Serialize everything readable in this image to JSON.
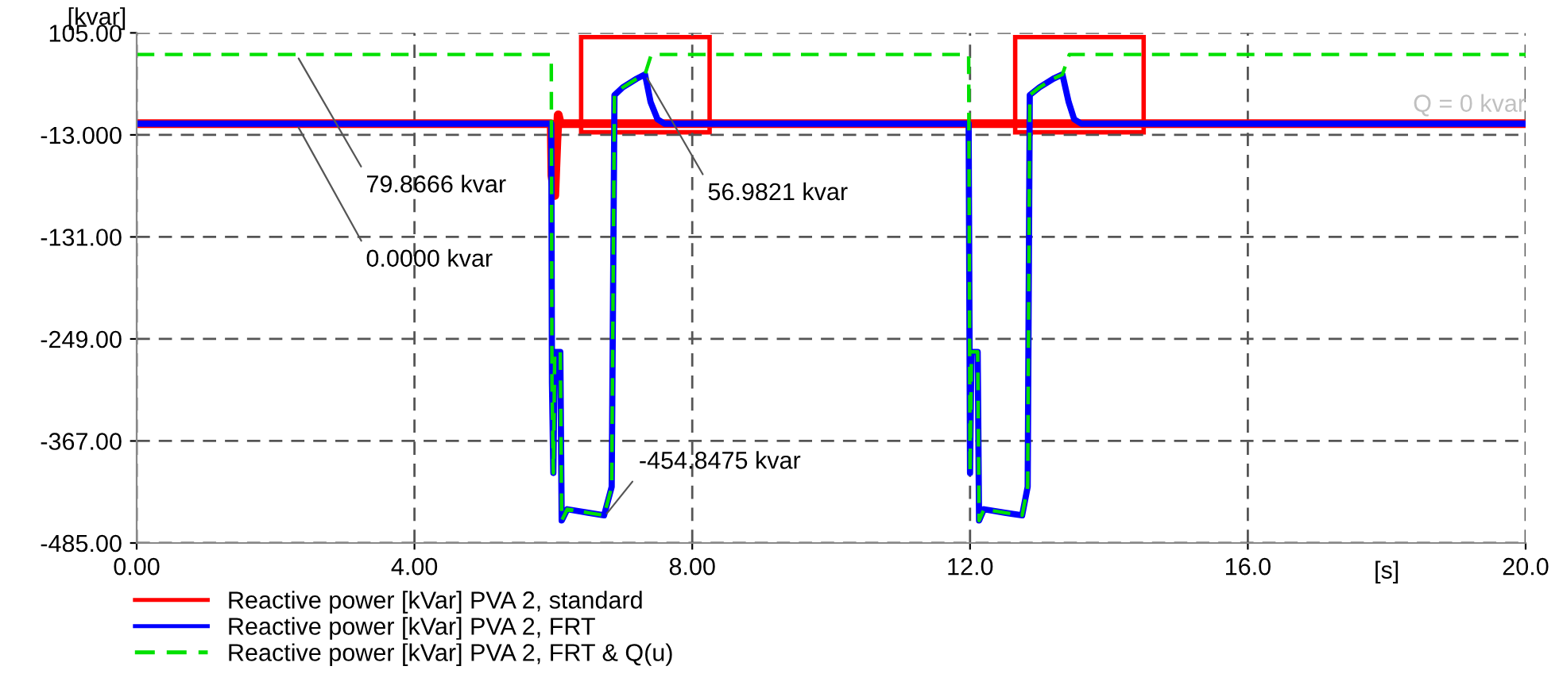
{
  "chart_data": {
    "type": "line",
    "xlabel": "[s]",
    "ylabel": "[kvar]",
    "xlim": [
      0,
      20
    ],
    "ylim": [
      -485,
      105
    ],
    "xticks": [
      {
        "value": 0,
        "label": "0.00"
      },
      {
        "value": 4,
        "label": "4.00"
      },
      {
        "value": 8,
        "label": "8.00"
      },
      {
        "value": 12,
        "label": "12.0"
      },
      {
        "value": 16,
        "label": "16.0"
      },
      {
        "value": 20,
        "label": "20.0"
      }
    ],
    "yticks": [
      {
        "value": 105,
        "label": "105.00"
      },
      {
        "value": -13,
        "label": "-13.000"
      },
      {
        "value": -131,
        "label": "-131.00"
      },
      {
        "value": -249,
        "label": "-249.00"
      },
      {
        "value": -367,
        "label": "-367.00"
      },
      {
        "value": -485,
        "label": "-485.00"
      }
    ],
    "grid": true,
    "legend": "bottom",
    "marker": "none",
    "series": [
      {
        "name": "Reactive power [kVar] PVA 2, standard",
        "color": "#ff0000",
        "line_style": "solid",
        "x": [
          0,
          5.97,
          5.98,
          6.02,
          6.05,
          6.07,
          6.1,
          20
        ],
        "values": [
          0,
          0,
          -60,
          -83,
          -20,
          10,
          0,
          0
        ]
      },
      {
        "name": "Reactive power [kVar] PVA 2, FRT",
        "color": "#0000ff",
        "line_style": "solid",
        "x": [
          0,
          5.97,
          5.98,
          6.0,
          6.02,
          6.05,
          6.1,
          6.12,
          6.2,
          6.5,
          6.73,
          6.84,
          6.88,
          7.0,
          7.2,
          7.32,
          7.4,
          7.5,
          7.6,
          11.98,
          12.0,
          12.02,
          12.05,
          12.11,
          12.13,
          12.2,
          12.5,
          12.75,
          12.83,
          12.86,
          13.0,
          13.2,
          13.33,
          13.42,
          13.5,
          13.6,
          20
        ],
        "values": [
          0,
          0,
          -300,
          -404,
          -264,
          -264,
          -264,
          -459,
          -446,
          -450,
          -453,
          -420,
          33,
          42,
          52,
          57,
          25,
          5,
          0,
          0,
          -404,
          -264,
          -264,
          -264,
          -459,
          -446,
          -450,
          -453,
          -420,
          33,
          42,
          52,
          57,
          25,
          5,
          0,
          0
        ]
      },
      {
        "name": "Reactive power [kVar] PVA 2, FRT & Q(u)",
        "color": "#00e000",
        "line_style": "dashed",
        "x": [
          0,
          5.97,
          5.98,
          6.0,
          6.02,
          6.05,
          6.1,
          6.12,
          6.2,
          6.5,
          6.73,
          6.84,
          6.88,
          7.0,
          7.2,
          7.32,
          7.41,
          11.98,
          12.0,
          12.02,
          12.05,
          12.11,
          12.13,
          12.2,
          12.5,
          12.75,
          12.83,
          12.86,
          13.0,
          13.2,
          13.33,
          13.43,
          20
        ],
        "values": [
          80,
          80,
          -300,
          -404,
          -264,
          -264,
          -264,
          -459,
          -446,
          -450,
          -453,
          -420,
          33,
          42,
          52,
          57,
          80,
          80,
          -404,
          -264,
          -264,
          -264,
          -459,
          -446,
          -450,
          -453,
          -420,
          33,
          42,
          52,
          57,
          80,
          80
        ]
      }
    ],
    "annotations": [
      {
        "text": "79.8666 kvar",
        "x": 2.3,
        "y": 79.8666
      },
      {
        "text": "0.0000 kvar",
        "x": 2.3,
        "y": 0
      },
      {
        "text": "56.9821 kvar",
        "x": 7.32,
        "y": 56.9821
      },
      {
        "text": "-454.8475 kvar",
        "x": 6.73,
        "y": -454.8475
      },
      {
        "text": "Q = 0 kvar",
        "x": 20,
        "y": 0
      }
    ]
  }
}
